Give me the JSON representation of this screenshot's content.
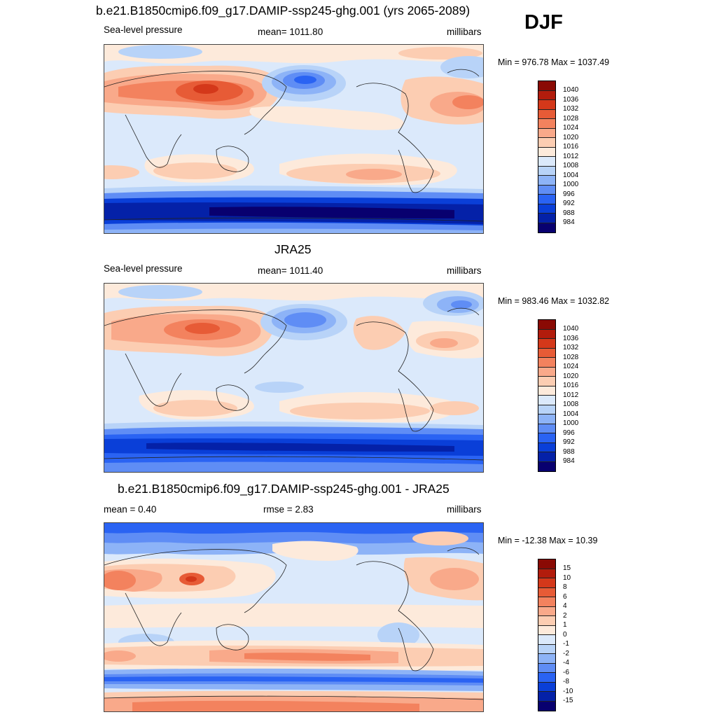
{
  "season": "DJF",
  "colors": {
    "slp": [
      "#08006f",
      "#0421a8",
      "#0a3fd8",
      "#2a63f3",
      "#5f8df5",
      "#8db3f7",
      "#b8d3f8",
      "#dbe9fb",
      "#fdeadb",
      "#fccdb2",
      "#f9a98a",
      "#f3825e",
      "#e75b36",
      "#d4381a",
      "#b21c0c",
      "#8a0a04"
    ],
    "diff": [
      "#08006f",
      "#0421a8",
      "#0a3fd8",
      "#2a63f3",
      "#5f8df5",
      "#8db3f7",
      "#b8d3f8",
      "#dbe9fb",
      "#fdeadb",
      "#fccdb2",
      "#f9a98a",
      "#f3825e",
      "#e75b36",
      "#d4381a",
      "#b21c0c",
      "#8a0a04"
    ]
  },
  "panels": [
    {
      "title": "b.e21.B1850cmip6.f09_g17.DAMIP-ssp245-ghg.001 (yrs 2065-2089)",
      "left_label": "Sea-level pressure",
      "center_label": "mean= 1011.80",
      "right_label": "millibars",
      "minmax": "Min = 976.78 Max = 1037.49",
      "levels": [
        "1040",
        "1036",
        "1032",
        "1028",
        "1024",
        "1020",
        "1016",
        "1012",
        "1008",
        "1004",
        "1000",
        "996",
        "992",
        "988",
        "984"
      ]
    },
    {
      "title": "JRA25",
      "left_label": "Sea-level pressure",
      "center_label": "mean= 1011.40",
      "right_label": "millibars",
      "minmax": "Min = 983.46 Max = 1032.82",
      "levels": [
        "1040",
        "1036",
        "1032",
        "1028",
        "1024",
        "1020",
        "1016",
        "1012",
        "1008",
        "1004",
        "1000",
        "996",
        "992",
        "988",
        "984"
      ]
    },
    {
      "title": "b.e21.B1850cmip6.f09_g17.DAMIP-ssp245-ghg.001 - JRA25",
      "left_label": "mean =   0.40",
      "center_label": "rmse =   2.83",
      "right_label": "millibars",
      "minmax": "Min = -12.38 Max =  10.39",
      "levels": [
        "15",
        "10",
        "8",
        "6",
        "4",
        "2",
        "1",
        "0",
        "-1",
        "-2",
        "-4",
        "-6",
        "-8",
        "-10",
        "-15"
      ]
    }
  ]
}
